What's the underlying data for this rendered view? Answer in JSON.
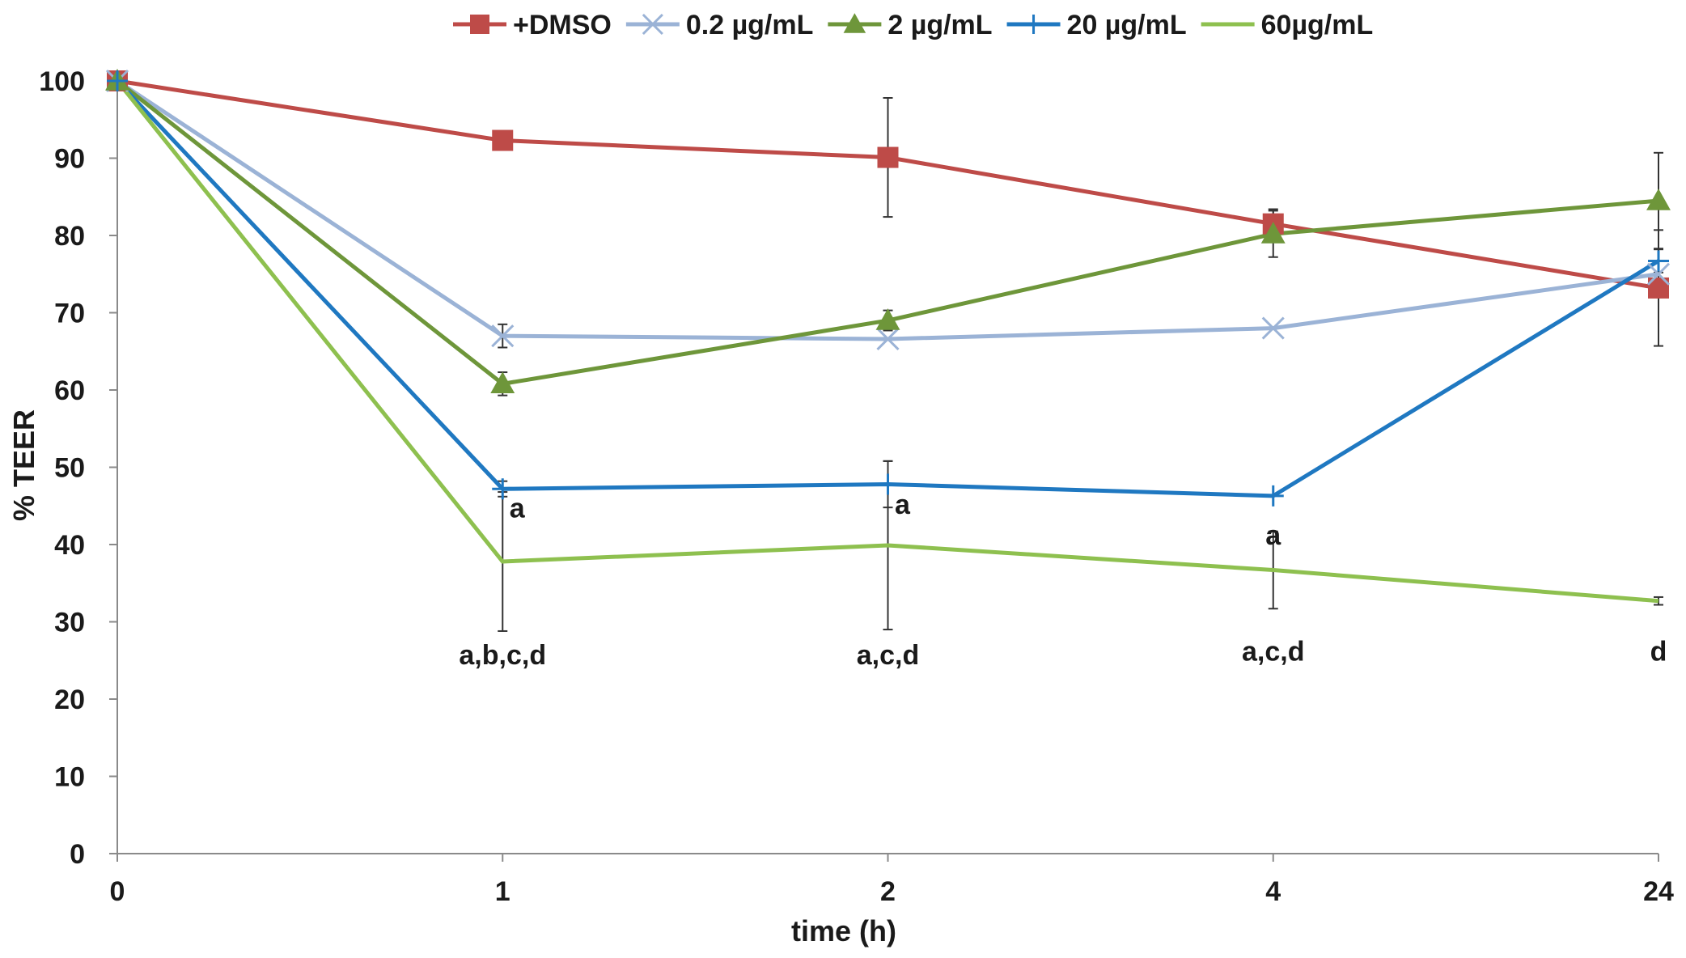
{
  "chart_data": {
    "type": "line",
    "title": "",
    "xlabel": "time (h)",
    "ylabel": "% TEER",
    "categories": [
      "0",
      "1",
      "2",
      "4",
      "24"
    ],
    "ylim": [
      0,
      100
    ],
    "yticks": [
      0,
      10,
      20,
      30,
      40,
      50,
      60,
      70,
      80,
      90,
      100
    ],
    "legend_position": "top",
    "series": [
      {
        "name": "+DMSO",
        "color": "#be4b48",
        "marker": "square",
        "values": [
          100,
          92.3,
          90.1,
          81.5,
          73.2
        ],
        "errors": [
          0,
          0,
          7.7,
          1.9,
          7.5
        ]
      },
      {
        "name": "0.2 µg/mL",
        "color": "#9bb3d6",
        "marker": "x",
        "values": [
          100,
          67.0,
          66.6,
          68.0,
          75.0
        ],
        "errors": [
          0,
          1.5,
          0,
          0,
          0
        ]
      },
      {
        "name": "2 µg/mL",
        "color": "#6e963a",
        "marker": "triangle",
        "values": [
          100,
          60.8,
          69.0,
          80.2,
          84.5
        ],
        "errors": [
          0,
          1.5,
          1.3,
          3.0,
          6.2
        ]
      },
      {
        "name": "20 µg/mL",
        "color": "#1f78c1",
        "marker": "plus",
        "values": [
          100,
          47.2,
          47.8,
          46.3,
          76.7
        ],
        "errors": [
          0,
          1.0,
          3.0,
          0,
          1.5
        ]
      },
      {
        "name": "60µg/mL",
        "color": "#8ec04f",
        "marker": "none",
        "values": [
          100,
          37.8,
          39.9,
          36.7,
          32.7
        ],
        "errors": [
          0,
          9.0,
          10.9,
          5.0,
          0.5
        ]
      }
    ],
    "annotations": [
      {
        "text": "a",
        "x": "1",
        "y": 43.5
      },
      {
        "text": "a",
        "x": "2",
        "y": 44.0
      },
      {
        "text": "a",
        "x": "4",
        "y": 40.0
      },
      {
        "text": "a,b,c,d",
        "x": "1",
        "y": 24.5
      },
      {
        "text": "a,c,d",
        "x": "2",
        "y": 24.5
      },
      {
        "text": "a,c,d",
        "x": "4",
        "y": 25.0
      },
      {
        "text": "d",
        "x": "24",
        "y": 25.0
      }
    ]
  }
}
